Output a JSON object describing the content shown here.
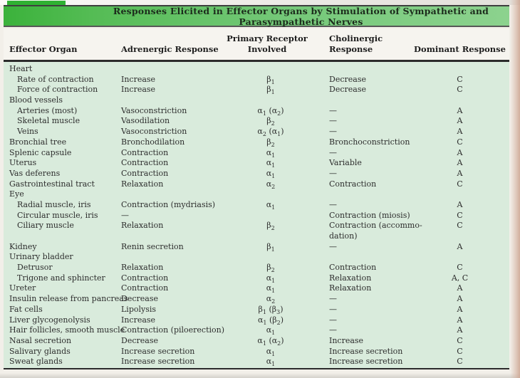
{
  "title": "Responses Elicited in Effector Organs by Stimulation of Sympathetic and Parasympathetic Nerves",
  "colors": {
    "title_green_left": "#3bb23b",
    "title_green_right": "#8cd28e",
    "tab_green": "#2fb132",
    "body_background": "#d9ebdc",
    "rule": "#2b2b2b"
  },
  "table": {
    "headers": {
      "effector_organ": "Effector Organ",
      "adrenergic": "Adrenergic Response",
      "receptor": "Primary Receptor\nInvolved",
      "cholinergic": "Cholinergic\nResponse",
      "dominant": "Dominant Response"
    },
    "rows": [
      {
        "organ": "Heart",
        "indent": false,
        "adrenergic": "",
        "receptor": "",
        "cholinergic": "",
        "dominant": ""
      },
      {
        "organ": "Rate of contraction",
        "indent": true,
        "adrenergic": "Increase",
        "receptor": "β1",
        "cholinergic": "Decrease",
        "dominant": "C"
      },
      {
        "organ": "Force of contraction",
        "indent": true,
        "adrenergic": "Increase",
        "receptor": "β1",
        "cholinergic": "Decrease",
        "dominant": "C"
      },
      {
        "organ": "Blood vessels",
        "indent": false,
        "adrenergic": "",
        "receptor": "",
        "cholinergic": "",
        "dominant": ""
      },
      {
        "organ": "Arteries (most)",
        "indent": true,
        "adrenergic": "Vasoconstriction",
        "receptor": "α1 (α2)",
        "cholinergic": "—",
        "dominant": "A"
      },
      {
        "organ": "Skeletal muscle",
        "indent": true,
        "adrenergic": "Vasodilation",
        "receptor": "β2",
        "cholinergic": "—",
        "dominant": "A"
      },
      {
        "organ": "Veins",
        "indent": true,
        "adrenergic": "Vasoconstriction",
        "receptor": "α2 (α1)",
        "cholinergic": "—",
        "dominant": "A"
      },
      {
        "organ": "Bronchial tree",
        "indent": false,
        "adrenergic": "Bronchodilation",
        "receptor": "β2",
        "cholinergic": "Bronchoconstriction",
        "dominant": "C"
      },
      {
        "organ": "Splenic capsule",
        "indent": false,
        "adrenergic": "Contraction",
        "receptor": "α1",
        "cholinergic": "—",
        "dominant": "A"
      },
      {
        "organ": "Uterus",
        "indent": false,
        "adrenergic": "Contraction",
        "receptor": "α1",
        "cholinergic": "Variable",
        "dominant": "A"
      },
      {
        "organ": "Vas deferens",
        "indent": false,
        "adrenergic": "Contraction",
        "receptor": "α1",
        "cholinergic": "—",
        "dominant": "A"
      },
      {
        "organ": "Gastrointestinal tract",
        "indent": false,
        "adrenergic": "Relaxation",
        "receptor": "α2",
        "cholinergic": "Contraction",
        "dominant": "C"
      },
      {
        "organ": "Eye",
        "indent": false,
        "adrenergic": "",
        "receptor": "",
        "cholinergic": "",
        "dominant": ""
      },
      {
        "organ": "Radial muscle, iris",
        "indent": true,
        "adrenergic": "Contraction (mydriasis)",
        "receptor": "α1",
        "cholinergic": "—",
        "dominant": "A"
      },
      {
        "organ": "Circular muscle, iris",
        "indent": true,
        "adrenergic": "—",
        "receptor": "",
        "cholinergic": "Contraction (miosis)",
        "dominant": "C"
      },
      {
        "organ": "Ciliary muscle",
        "indent": true,
        "adrenergic": "Relaxation",
        "receptor": "β2",
        "cholinergic": "Contraction (accommo-\ndation)",
        "dominant": "C",
        "tall": true
      },
      {
        "organ": "Kidney",
        "indent": false,
        "adrenergic": "Renin secretion",
        "receptor": "β1",
        "cholinergic": "—",
        "dominant": "A"
      },
      {
        "organ": "Urinary bladder",
        "indent": false,
        "adrenergic": "",
        "receptor": "",
        "cholinergic": "",
        "dominant": ""
      },
      {
        "organ": "Detrusor",
        "indent": true,
        "adrenergic": "Relaxation",
        "receptor": "β2",
        "cholinergic": "Contraction",
        "dominant": "C"
      },
      {
        "organ": "Trigone and sphincter",
        "indent": true,
        "adrenergic": "Contraction",
        "receptor": "α1",
        "cholinergic": "Relaxation",
        "dominant": "A, C"
      },
      {
        "organ": "Ureter",
        "indent": false,
        "adrenergic": "Contraction",
        "receptor": "α1",
        "cholinergic": "Relaxation",
        "dominant": "A"
      },
      {
        "organ": "Insulin release from pancreas",
        "indent": false,
        "adrenergic": "Decrease",
        "receptor": "α2",
        "cholinergic": "—",
        "dominant": "A"
      },
      {
        "organ": "Fat cells",
        "indent": false,
        "adrenergic": "Lipolysis",
        "receptor": "β1 (β3)",
        "cholinergic": "—",
        "dominant": "A"
      },
      {
        "organ": "Liver glycogenolysis",
        "indent": false,
        "adrenergic": "Increase",
        "receptor": "α1 (β2)",
        "cholinergic": "—",
        "dominant": "A"
      },
      {
        "organ": "Hair follicles, smooth muscle",
        "indent": false,
        "adrenergic": "Contraction (piloerection)",
        "receptor": "α1",
        "cholinergic": "—",
        "dominant": "A"
      },
      {
        "organ": "Nasal secretion",
        "indent": false,
        "adrenergic": "Decrease",
        "receptor": "α1 (α2)",
        "cholinergic": "Increase",
        "dominant": "C"
      },
      {
        "organ": "Salivary glands",
        "indent": false,
        "adrenergic": "Increase secretion",
        "receptor": "α1",
        "cholinergic": "Increase secretion",
        "dominant": "C"
      },
      {
        "organ": "Sweat glands",
        "indent": false,
        "adrenergic": "Increase secretion",
        "receptor": "α1",
        "cholinergic": "Increase secretion",
        "dominant": "C"
      }
    ]
  }
}
